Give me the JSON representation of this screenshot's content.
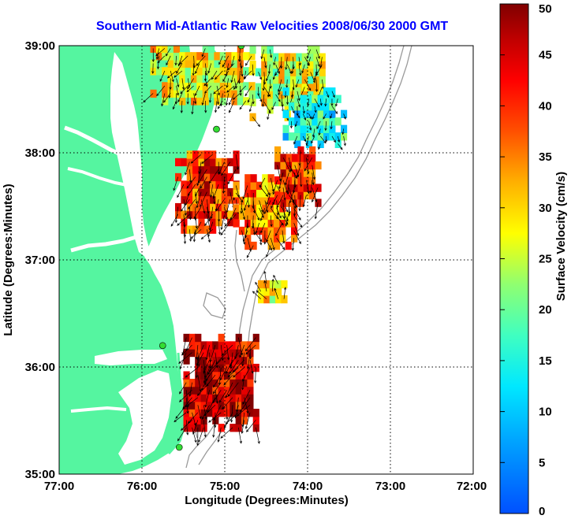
{
  "title": "Southern Mid-Atlantic Raw Velocities 2008/06/30 2000 GMT",
  "xlabel": "Longitude (Degrees:Minutes)",
  "ylabel": "Latitude (Degrees:Minutes)",
  "colorbar_label": "Surface Velocity (cm/s)",
  "x_ticks": [
    {
      "value": -77,
      "label": "77:00"
    },
    {
      "value": -76,
      "label": "76:00"
    },
    {
      "value": -75,
      "label": "75:00"
    },
    {
      "value": -74,
      "label": "74:00"
    },
    {
      "value": -73,
      "label": "73:00"
    },
    {
      "value": -72,
      "label": "72:00"
    }
  ],
  "y_ticks": [
    {
      "value": 39,
      "label": "39:00"
    },
    {
      "value": 38,
      "label": "38:00"
    },
    {
      "value": 37,
      "label": "37:00"
    },
    {
      "value": 36,
      "label": "36:00"
    },
    {
      "value": 35,
      "label": "35:00"
    }
  ],
  "colorbar_ticks": [
    "0",
    "5",
    "10",
    "15",
    "20",
    "25",
    "30",
    "35",
    "40",
    "45",
    "50"
  ],
  "colors": {
    "land": "#55f5a0",
    "water": "#ffffff",
    "title": "#0000ff",
    "isobath": "#999999",
    "station": "#33dd33"
  },
  "chart_data": {
    "type": "vector-field-map",
    "title": "Southern Mid-Atlantic Raw Velocities 2008/06/30 2000 GMT",
    "xlabel": "Longitude (Degrees:Minutes)",
    "ylabel": "Latitude (Degrees:Minutes)",
    "xlim": [
      -77,
      -72
    ],
    "ylim": [
      35,
      39
    ],
    "grid": true,
    "colorbar": {
      "label": "Surface Velocity (cm/s)",
      "range": [
        0,
        50
      ],
      "colormap": "jet"
    },
    "regions": [
      {
        "lon": [
          -75.9,
          -74.7
        ],
        "lat": [
          38.45,
          39.0
        ],
        "mean_speed_cm_s": 28
      },
      {
        "lon": [
          -74.7,
          -73.8
        ],
        "lat": [
          38.3,
          39.0
        ],
        "mean_speed_cm_s": 26
      },
      {
        "lon": [
          -74.3,
          -73.6
        ],
        "lat": [
          38.05,
          38.6
        ],
        "mean_speed_cm_s": 15
      },
      {
        "lon": [
          -75.6,
          -74.9
        ],
        "lat": [
          37.25,
          38.0
        ],
        "mean_speed_cm_s": 40
      },
      {
        "lon": [
          -74.9,
          -74.2
        ],
        "lat": [
          37.1,
          37.8
        ],
        "mean_speed_cm_s": 35
      },
      {
        "lon": [
          -74.4,
          -73.9
        ],
        "lat": [
          37.5,
          38.0
        ],
        "mean_speed_cm_s": 40
      },
      {
        "lon": [
          -75.5,
          -74.6
        ],
        "lat": [
          35.4,
          36.3
        ],
        "mean_speed_cm_s": 45
      },
      {
        "lon": [
          -74.6,
          -74.3
        ],
        "lat": [
          36.6,
          36.8
        ],
        "mean_speed_cm_s": 27
      }
    ],
    "stations": [
      {
        "lon": -74.8,
        "lat": 39.0
      },
      {
        "lon": -75.1,
        "lat": 38.22
      },
      {
        "lon": -75.75,
        "lat": 36.2
      },
      {
        "lon": -75.55,
        "lat": 35.25
      }
    ]
  }
}
